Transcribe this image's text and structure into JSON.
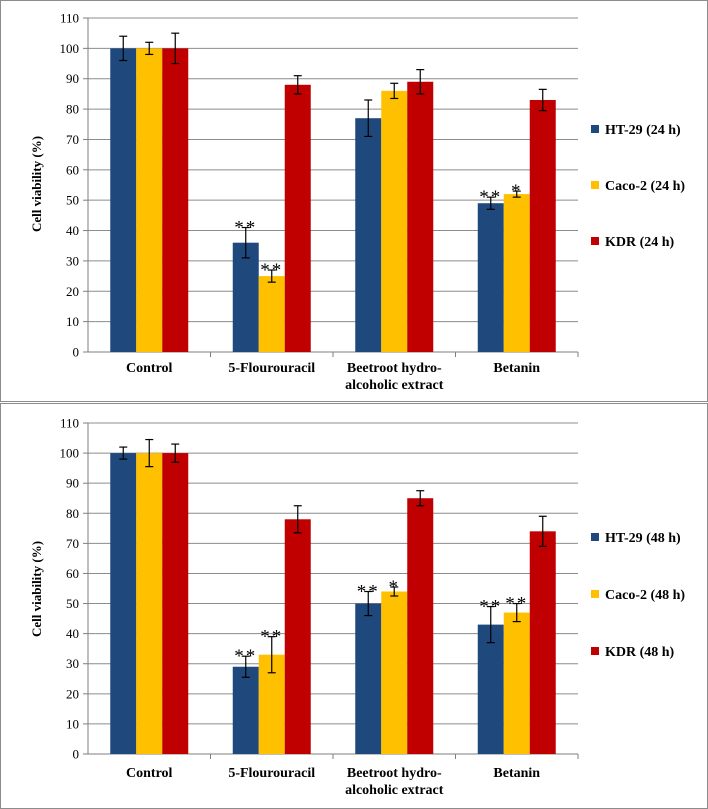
{
  "chart_data": [
    {
      "type": "bar",
      "title": "",
      "xlabel": "",
      "ylabel": "Cell viability (%)",
      "ylim": [
        0,
        110
      ],
      "yticks": [
        0,
        10,
        20,
        30,
        40,
        50,
        60,
        70,
        80,
        90,
        100,
        110
      ],
      "grid": true,
      "legend_position": "right",
      "categories": [
        "Control",
        "5-Flourouracil",
        "Beetroot hydro-alcoholic extract",
        "Betanin"
      ],
      "category_label_lines": [
        [
          "Control"
        ],
        [
          "5-Flourouracil"
        ],
        [
          "Beetroot hydro-",
          "alcoholic extract"
        ],
        [
          "Betanin"
        ]
      ],
      "series": [
        {
          "name": "HT-29 (24 h)",
          "color": "#1f497d",
          "values": [
            100,
            36,
            77,
            49
          ],
          "errors": [
            4,
            5,
            6,
            2
          ],
          "annotations": [
            "",
            "**",
            "",
            "**"
          ]
        },
        {
          "name": "Caco-2 (24 h)",
          "color": "#ffc000",
          "values": [
            100,
            25,
            86,
            52
          ],
          "errors": [
            2,
            2,
            2.5,
            1
          ],
          "annotations": [
            "",
            "**",
            "",
            "*"
          ]
        },
        {
          "name": "KDR (24 h)",
          "color": "#c00000",
          "values": [
            100,
            88,
            89,
            83
          ],
          "errors": [
            5,
            3,
            4,
            3.5
          ],
          "annotations": [
            "",
            "",
            "",
            ""
          ]
        }
      ]
    },
    {
      "type": "bar",
      "title": "",
      "xlabel": "",
      "ylabel": "Cell viability (%)",
      "ylim": [
        0,
        110
      ],
      "yticks": [
        0,
        10,
        20,
        30,
        40,
        50,
        60,
        70,
        80,
        90,
        100,
        110
      ],
      "grid": true,
      "legend_position": "right",
      "categories": [
        "Control",
        "5-Flourouracil",
        "Beetroot hydro-alcoholic extract",
        "Betanin"
      ],
      "category_label_lines": [
        [
          "Control"
        ],
        [
          "5-Flourouracil"
        ],
        [
          "Beetroot hydro-",
          "alcoholic extract"
        ],
        [
          "Betanin"
        ]
      ],
      "series": [
        {
          "name": "HT-29 (48 h)",
          "color": "#1f497d",
          "values": [
            100,
            29,
            50,
            43
          ],
          "errors": [
            2,
            3.5,
            4,
            6
          ],
          "annotations": [
            "",
            "**",
            "**",
            "**"
          ]
        },
        {
          "name": "Caco-2 (48 h)",
          "color": "#ffc000",
          "values": [
            100,
            33,
            54,
            47
          ],
          "errors": [
            4.5,
            6,
            1.5,
            3
          ],
          "annotations": [
            "",
            "**",
            "*",
            "**"
          ]
        },
        {
          "name": "KDR (48 h)",
          "color": "#c00000",
          "values": [
            100,
            78,
            85,
            74
          ],
          "errors": [
            3,
            4.5,
            2.5,
            5
          ],
          "annotations": [
            "",
            "",
            "",
            ""
          ]
        }
      ]
    }
  ]
}
